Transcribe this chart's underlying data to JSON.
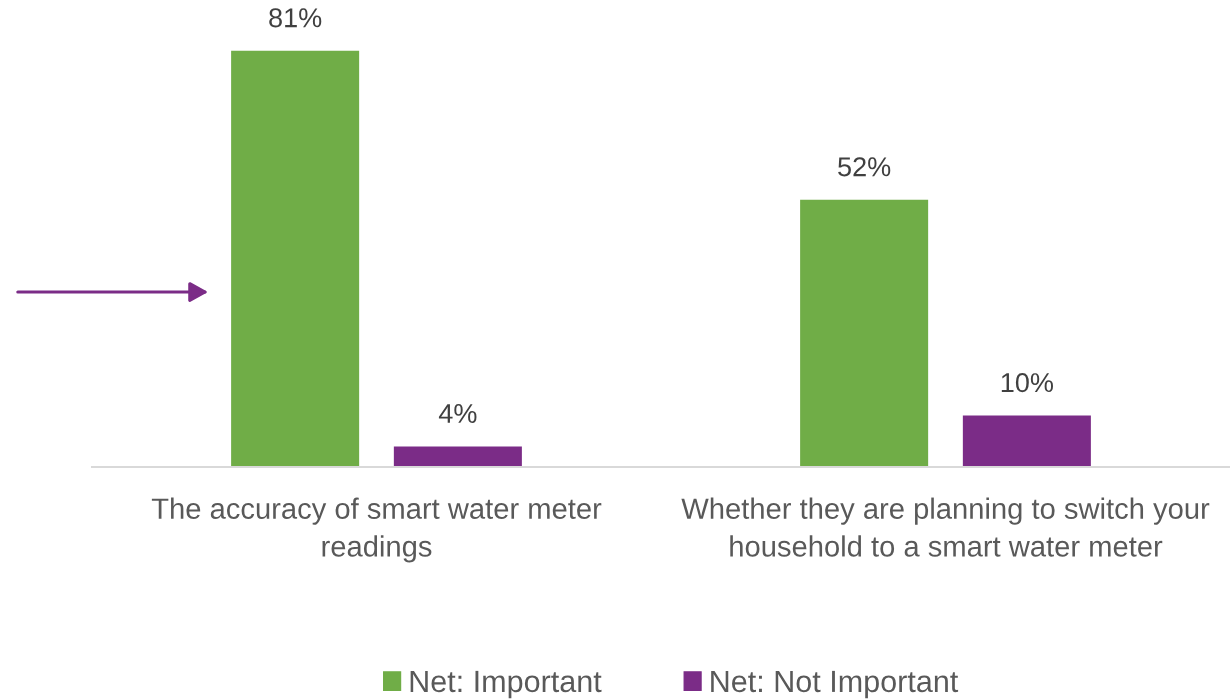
{
  "chart_data": {
    "type": "bar",
    "categories": [
      "The accuracy of smart water meter\nreadings",
      "Whether they are planning to switch your\nhousehold to a smart water meter"
    ],
    "series": [
      {
        "name": "Net: Important",
        "color": "#70ad47",
        "values": [
          81,
          52
        ],
        "value_labels": [
          "81%",
          "52%"
        ]
      },
      {
        "name": "Net: Not Important",
        "color": "#7b2c87",
        "values": [
          4,
          10
        ],
        "value_labels": [
          "4%",
          "10%"
        ]
      }
    ],
    "legend": "bottom",
    "tick_labels": "x"
  }
}
